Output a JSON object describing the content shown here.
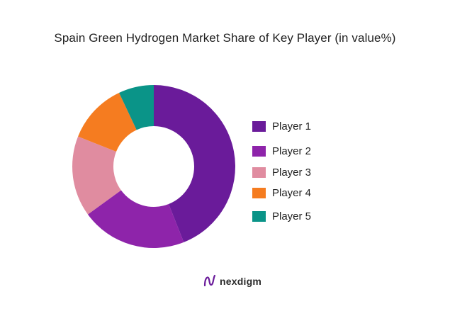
{
  "chart_data": {
    "type": "pie",
    "title": "Spain Green Hydrogen Market Share of Key Player (in value%)",
    "categories": [
      "Player 1",
      "Player 2",
      "Player 3",
      "Player 4",
      "Player 5"
    ],
    "values": [
      44,
      21,
      16,
      12,
      7
    ],
    "colors": [
      "#6a1b9a",
      "#8e24aa",
      "#e08ca0",
      "#f57c20",
      "#0a9488"
    ],
    "legend_position": "right",
    "donut": true
  },
  "brand": {
    "name": "nexdigm",
    "icon": "nexdigm-logo-icon"
  }
}
